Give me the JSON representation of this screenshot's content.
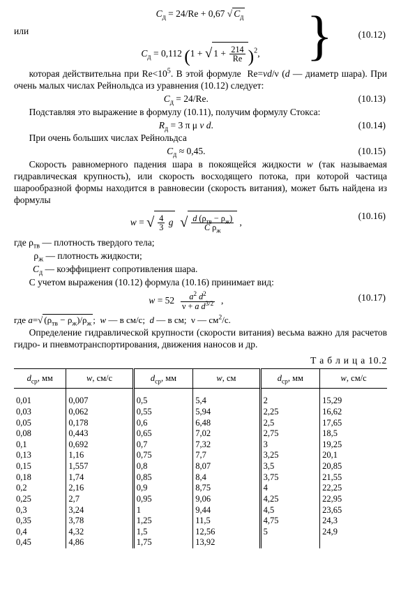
{
  "eq": {
    "r1012a": "C_д = 24/Re + 0,67 √C_д",
    "or": "или",
    "num1012": "(10.12)",
    "r1012b_pre": "C_д = 0,112 ",
    "r1012b_inner": "214",
    "paragraph1": "которая действительна при Re<10⁵. В этой формуле Re=vd/ν (d — диаметр шара). При очень малых числах Рейнольдса из уравнения (10.12) следует:",
    "r1013": "C_д = 24/Re.",
    "num1013": "(10.13)",
    "paragraph2": "Подставляя это выражение в формулу (10.11), получим формулу Стокса:",
    "r1014": "R_д = 3 π μ v d.",
    "num1014": "(10.14)",
    "paragraph3": "При очень больших числах Рейнольдса",
    "r1015": "C_д ≈ 0,45.",
    "num1015": "(10.15)",
    "paragraph4": "Скорость равномерного падения шара в покоящейся жидкости w (так называемая гидравлическая крупность), или скорость восходящего потока, при которой частица шарообразной формы находится в равновесии (скорость витания), может быть найдена из формулы",
    "num1016": "(10.16)",
    "where1": "где ρ_тв — плотность твердого тела;",
    "where2": "ρ_ж — плотность жидкости;",
    "where3": "C_д — коэффициент сопротивления шара.",
    "paragraph5": "С учетом выражения (10.12) формула (10.16) принимает вид:",
    "num1017": "(10.17)",
    "paragraph6": "где a=√( (ρ_тв − ρ_ж)/ρ_ж ); w — в см/с; d — в см; ν — см²/с.",
    "paragraph7": "Определение гидравлической крупности (скорости витания) весьма важно для расчетов гидро- и пневмотранспортирования, движения наносов и др."
  },
  "table": {
    "caption": "Т а б л и ц а 10.2",
    "head_d": "d_ср",
    "head_d_unit": ", мм",
    "head_w": "w",
    "head_w_unit1": ", см/с",
    "head_w_unit2": ", см",
    "rows": [
      {
        "d1": "0,01",
        "w1": "0,007",
        "d2": "0,5",
        "w2": "5,4",
        "d3": "2",
        "w3": "15,29"
      },
      {
        "d1": "0,03",
        "w1": "0,062",
        "d2": "0,55",
        "w2": "5,94",
        "d3": "2,25",
        "w3": "16,62"
      },
      {
        "d1": "0,05",
        "w1": "0,178",
        "d2": "0,6",
        "w2": "6,48",
        "d3": "2,5",
        "w3": "17,65"
      },
      {
        "d1": "0,08",
        "w1": "0,443",
        "d2": "0,65",
        "w2": "7,02",
        "d3": "2,75",
        "w3": "18,5"
      },
      {
        "d1": "0,1",
        "w1": "0,692",
        "d2": "0,7",
        "w2": "7,32",
        "d3": "3",
        "w3": "19,25"
      },
      {
        "d1": "0,13",
        "w1": "1,16",
        "d2": "0,75",
        "w2": "7,7",
        "d3": "3,25",
        "w3": "20,1"
      },
      {
        "d1": "0,15",
        "w1": "1,557",
        "d2": "0,8",
        "w2": "8,07",
        "d3": "3,5",
        "w3": "20,85"
      },
      {
        "d1": "0,18",
        "w1": "1,74",
        "d2": "0,85",
        "w2": "8,4",
        "d3": "3,75",
        "w3": "21,55"
      },
      {
        "d1": "0,2",
        "w1": "2,16",
        "d2": "0,9",
        "w2": "8,75",
        "d3": "4",
        "w3": "22,25"
      },
      {
        "d1": "0,25",
        "w1": "2,7",
        "d2": "0,95",
        "w2": "9,06",
        "d3": "4,25",
        "w3": "22,95"
      },
      {
        "d1": "0,3",
        "w1": "3,24",
        "d2": "1",
        "w2": "9,44",
        "d3": "4,5",
        "w3": "23,65"
      },
      {
        "d1": "0,35",
        "w1": "3,78",
        "d2": "1,25",
        "w2": "11,5",
        "d3": "4,75",
        "w3": "24,3"
      },
      {
        "d1": "0,4",
        "w1": "4,32",
        "d2": "1,5",
        "w2": "12,56",
        "d3": "5",
        "w3": "24,9"
      },
      {
        "d1": "0,45",
        "w1": "4,86",
        "d2": "1,75",
        "w2": "13,92",
        "d3": "",
        "w3": ""
      }
    ]
  }
}
